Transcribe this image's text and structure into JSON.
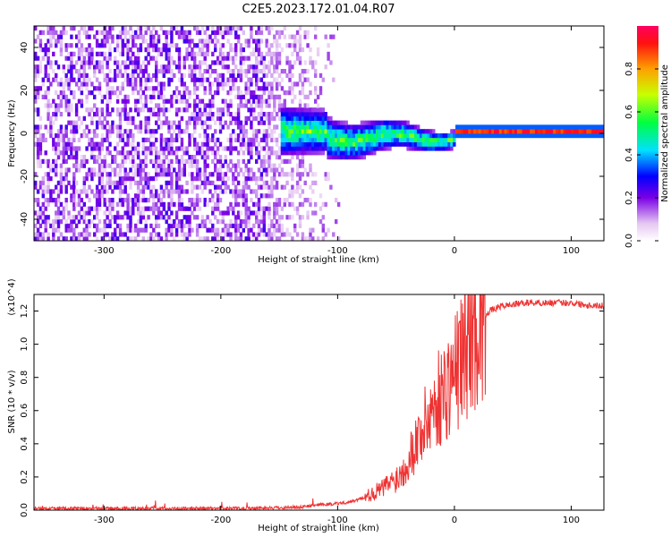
{
  "chart_data": [
    {
      "type": "heatmap",
      "title": "C2E5.2023.172.01.04.R07",
      "xlabel": "Height of straight line (km)",
      "ylabel": "Frequency (Hz)",
      "xlim": [
        -360,
        128
      ],
      "ylim": [
        -50,
        50
      ],
      "xticks": [
        -300,
        -200,
        -100,
        0,
        100
      ],
      "yticks": [
        -40,
        -20,
        0,
        20,
        40
      ],
      "grid": false,
      "colorbar": {
        "label": "Normalized spectral amplitude",
        "range": [
          0.0,
          1.0
        ],
        "ticks": [
          0.0,
          0.2,
          0.4,
          0.6,
          0.8
        ]
      },
      "regions": [
        {
          "x_from": -360,
          "x_to": -160,
          "description": "broadband noise across all frequencies, amplitude ~0.1-0.3"
        },
        {
          "x_from": -160,
          "x_to": -100,
          "description": "transition, noise thinning out"
        },
        {
          "x_from": -150,
          "x_to": 0,
          "description": "signal band centered near 0 Hz, amplitude ~0.3-0.6"
        },
        {
          "x_from": 0,
          "x_to": 128,
          "description": "narrow carrier line at 0 Hz, amplitude ~0.8-1.0"
        }
      ]
    },
    {
      "type": "line",
      "xlabel": "Height of straight line (km)",
      "ylabel": "SNR (10 * v/v)",
      "y_multiplier": "(x10^4)",
      "xlim": [
        -360,
        128
      ],
      "ylim": [
        0.0,
        1.3
      ],
      "xticks": [
        -300,
        -200,
        -100,
        0,
        100
      ],
      "yticks": [
        0.0,
        0.2,
        0.4,
        0.6,
        0.8,
        1.0,
        1.2
      ],
      "series": [
        {
          "color": "#ee3333",
          "x": [
            -360,
            -300,
            -250,
            -200,
            -150,
            -130,
            -120,
            -110,
            -100,
            -90,
            -80,
            -70,
            -60,
            -50,
            -45,
            -40,
            -35,
            -30,
            -25,
            -20,
            -15,
            -10,
            -5,
            0,
            5,
            10,
            15,
            20,
            25,
            30,
            40,
            50,
            60,
            80,
            100,
            110,
            128
          ],
          "y": [
            0.01,
            0.01,
            0.01,
            0.01,
            0.015,
            0.02,
            0.03,
            0.035,
            0.04,
            0.05,
            0.07,
            0.1,
            0.14,
            0.19,
            0.23,
            0.3,
            0.38,
            0.45,
            0.52,
            0.6,
            0.66,
            0.7,
            0.76,
            0.82,
            0.9,
            0.98,
            1.05,
            1.12,
            1.17,
            1.2,
            1.23,
            1.24,
            1.25,
            1.25,
            1.25,
            1.24,
            1.23
          ]
        }
      ]
    }
  ]
}
